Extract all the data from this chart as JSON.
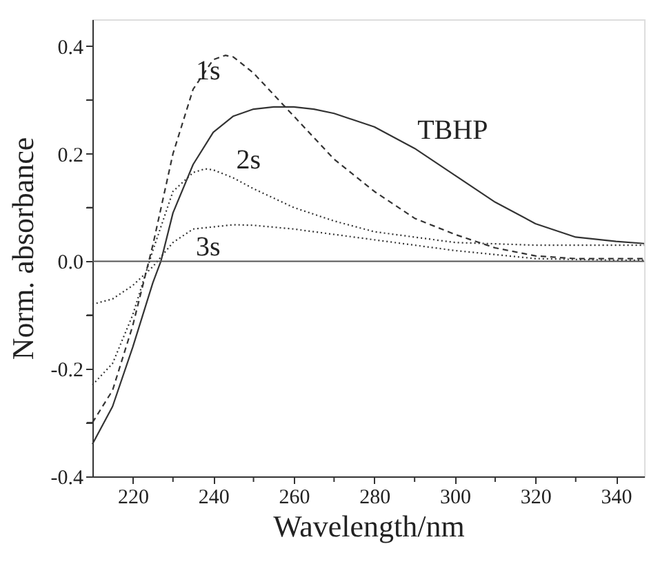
{
  "chart_data": {
    "type": "line",
    "xlabel": "Wavelength/nm",
    "ylabel": "Norm. absorbance",
    "xlim": [
      210,
      347
    ],
    "ylim": [
      -0.4,
      0.45
    ],
    "xticks": [
      220,
      {
        "value": 230,
        "label": null
      },
      240,
      {
        "value": 250,
        "label": null
      },
      260,
      {
        "value": 270,
        "label": null
      },
      280,
      {
        "value": 290,
        "label": null
      },
      300,
      {
        "value": 310,
        "label": null
      },
      320,
      {
        "value": 330,
        "label": null
      },
      340
    ],
    "yticks": [
      {
        "value": -0.4,
        "label": "-0.4"
      },
      {
        "value": -0.3,
        "label": null
      },
      {
        "value": -0.2,
        "label": "-0.2"
      },
      {
        "value": -0.1,
        "label": null
      },
      {
        "value": 0,
        "label": "0.0"
      },
      {
        "value": 0.1,
        "label": null
      },
      {
        "value": 0.2,
        "label": "0.2"
      },
      {
        "value": 0.3,
        "label": null
      },
      {
        "value": 0.4,
        "label": "0.4"
      }
    ],
    "grid": false,
    "marker": "none",
    "ref_lines": [
      {
        "axis": "y",
        "value": 0,
        "color": "#555555"
      }
    ],
    "series": [
      {
        "name": "TBHP",
        "color": "#333333",
        "line_style": "solid",
        "x": [
          210,
          215,
          220,
          225,
          227,
          230,
          235,
          240,
          245,
          250,
          255,
          260,
          265,
          270,
          280,
          290,
          300,
          310,
          320,
          330,
          340,
          347
        ],
        "values": [
          -0.34,
          -0.27,
          -0.16,
          -0.04,
          0,
          0.09,
          0.18,
          0.24,
          0.27,
          0.283,
          0.287,
          0.287,
          0.283,
          0.275,
          0.25,
          0.21,
          0.16,
          0.11,
          0.07,
          0.045,
          0.037,
          0.033
        ]
      },
      {
        "name": "1s",
        "color": "#333333",
        "line_style": "dashed",
        "x": [
          210,
          215,
          220,
          225,
          230,
          235,
          240,
          243,
          245,
          250,
          255,
          260,
          265,
          270,
          280,
          290,
          300,
          310,
          320,
          330,
          347
        ],
        "values": [
          -0.3,
          -0.24,
          -0.12,
          0.03,
          0.2,
          0.32,
          0.375,
          0.383,
          0.38,
          0.35,
          0.31,
          0.27,
          0.23,
          0.19,
          0.13,
          0.08,
          0.05,
          0.025,
          0.01,
          0.005,
          0.005
        ]
      },
      {
        "name": "2s",
        "color": "#333333",
        "line_style": "dotted",
        "x": [
          210,
          215,
          220,
          225,
          230,
          235,
          238,
          240,
          245,
          250,
          260,
          270,
          280,
          300,
          320,
          340,
          347
        ],
        "values": [
          -0.23,
          -0.19,
          -0.1,
          0.02,
          0.13,
          0.165,
          0.172,
          0.17,
          0.155,
          0.135,
          0.1,
          0.075,
          0.055,
          0.035,
          0.03,
          0.03,
          0.03
        ]
      },
      {
        "name": "3s",
        "color": "#333333",
        "line_style": "dotted",
        "x": [
          210,
          215,
          220,
          225,
          230,
          235,
          245,
          250,
          260,
          270,
          280,
          290,
          300,
          320,
          340,
          347
        ],
        "values": [
          -0.08,
          -0.07,
          -0.045,
          -0.01,
          0.035,
          0.06,
          0.068,
          0.067,
          0.06,
          0.05,
          0.04,
          0.03,
          0.02,
          0.005,
          0.002,
          0.002
        ]
      }
    ]
  }
}
